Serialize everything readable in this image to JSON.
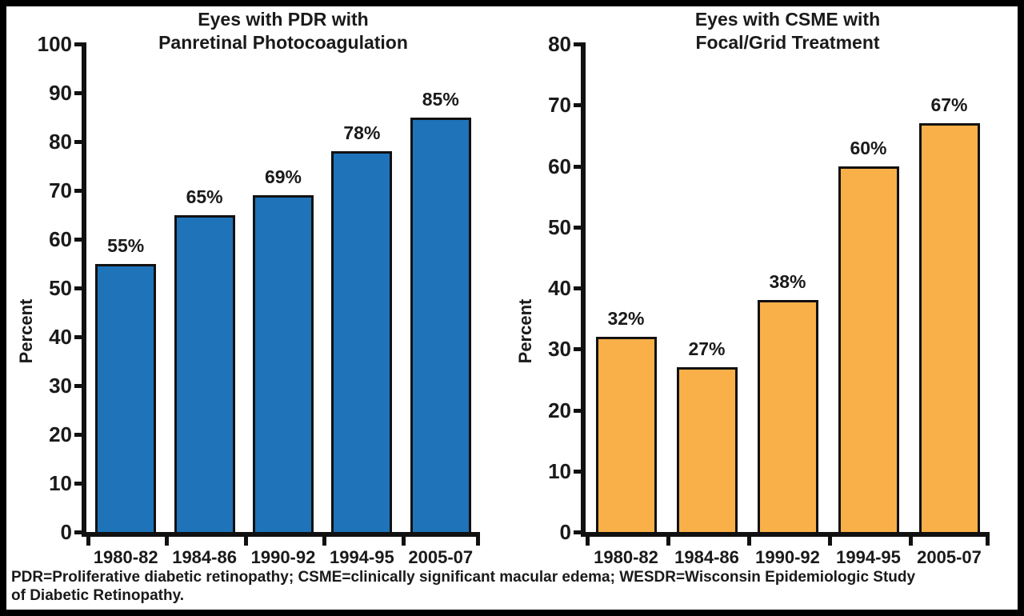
{
  "figure": {
    "footnote": "PDR=Proliferative diabetic retinopathy; CSME=clinically significant macular edema; WESDR=Wisconsin Epidemiologic Study\nof Diabetic Retinopathy.",
    "background_color": "#ffffff",
    "border_color": "#000000",
    "text_color": "#1a1a1a"
  },
  "chart_data": [
    {
      "type": "bar",
      "title": "Eyes with PDR with\nPanretinal Photocoagulation",
      "ylabel": "Percent",
      "xlabel": "",
      "categories": [
        "1980-82",
        "1984-86",
        "1990-92",
        "1994-95",
        "2005-07"
      ],
      "values": [
        55,
        65,
        69,
        78,
        85
      ],
      "value_labels": [
        "55%",
        "65%",
        "69%",
        "78%",
        "85%"
      ],
      "ylim": [
        0,
        100
      ],
      "ytick_step": 10,
      "ytick_labels": [
        "0",
        "10",
        "20",
        "30",
        "40",
        "50",
        "60",
        "70",
        "80",
        "90",
        "100"
      ],
      "bar_color": "#1E73B9",
      "bar_border_color": "#111111",
      "grid": false,
      "legend_position": "none"
    },
    {
      "type": "bar",
      "title": "Eyes with CSME with\nFocal/Grid Treatment",
      "ylabel": "Percent",
      "xlabel": "",
      "categories": [
        "1980-82",
        "1984-86",
        "1990-92",
        "1994-95",
        "2005-07"
      ],
      "values": [
        32,
        27,
        38,
        60,
        67
      ],
      "value_labels": [
        "32%",
        "27%",
        "38%",
        "60%",
        "67%"
      ],
      "ylim": [
        0,
        80
      ],
      "ytick_step": 10,
      "ytick_labels": [
        "0",
        "10",
        "20",
        "30",
        "40",
        "50",
        "60",
        "70",
        "80"
      ],
      "bar_color": "#FAB048",
      "bar_border_color": "#111111",
      "grid": false,
      "legend_position": "none"
    }
  ]
}
